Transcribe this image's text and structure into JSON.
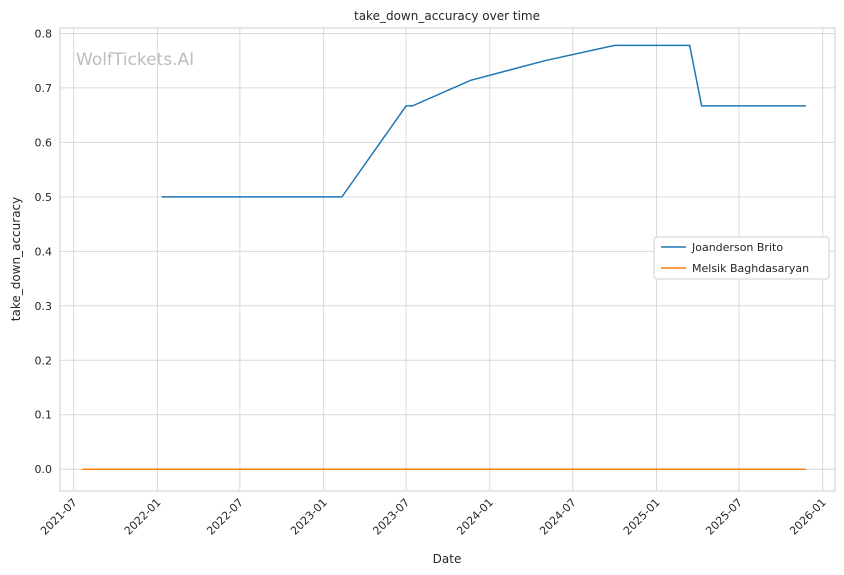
{
  "watermark": "WolfTickets.AI",
  "chart_data": {
    "type": "line",
    "title": "take_down_accuracy over time",
    "xlabel": "Date",
    "ylabel": "take_down_accuracy",
    "x_axis_type": "date",
    "xlim": [
      "2021-06-01",
      "2026-01-28"
    ],
    "ylim": [
      -0.04,
      0.81
    ],
    "x_ticks": [
      "2021-07",
      "2022-01",
      "2022-07",
      "2023-01",
      "2023-07",
      "2024-01",
      "2024-07",
      "2025-01",
      "2025-07",
      "2026-01"
    ],
    "y_ticks": [
      "0.0",
      "0.1",
      "0.2",
      "0.3",
      "0.4",
      "0.5",
      "0.6",
      "0.7",
      "0.8"
    ],
    "grid": true,
    "legend_position": "center-right",
    "series": [
      {
        "name": "Joanderson Brito",
        "color": "#1f77b4",
        "points": [
          {
            "x": "2022-01-10",
            "y": 0.5
          },
          {
            "x": "2023-02-10",
            "y": 0.5
          },
          {
            "x": "2023-07-01",
            "y": 0.667
          },
          {
            "x": "2023-07-15",
            "y": 0.667
          },
          {
            "x": "2023-11-20",
            "y": 0.714
          },
          {
            "x": "2024-05-01",
            "y": 0.75
          },
          {
            "x": "2024-10-01",
            "y": 0.778
          },
          {
            "x": "2025-03-15",
            "y": 0.778
          },
          {
            "x": "2025-04-10",
            "y": 0.667
          },
          {
            "x": "2025-11-25",
            "y": 0.667
          }
        ]
      },
      {
        "name": "Melsik Baghdasaryan",
        "color": "#ff7f0e",
        "points": [
          {
            "x": "2021-07-20",
            "y": 0.0
          },
          {
            "x": "2025-11-25",
            "y": 0.0
          }
        ]
      }
    ]
  }
}
